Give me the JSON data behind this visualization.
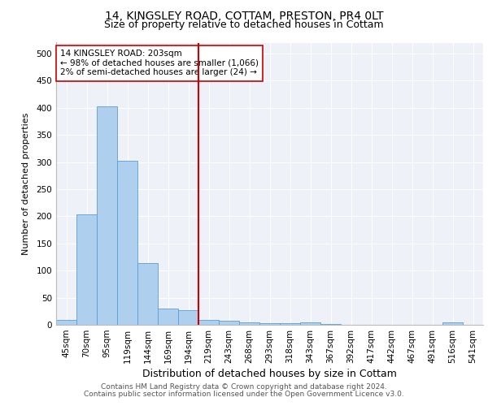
{
  "title1": "14, KINGSLEY ROAD, COTTAM, PRESTON, PR4 0LT",
  "title2": "Size of property relative to detached houses in Cottam",
  "xlabel": "Distribution of detached houses by size in Cottam",
  "ylabel": "Number of detached properties",
  "bar_labels": [
    "45sqm",
    "70sqm",
    "95sqm",
    "119sqm",
    "144sqm",
    "169sqm",
    "194sqm",
    "219sqm",
    "243sqm",
    "268sqm",
    "293sqm",
    "318sqm",
    "343sqm",
    "367sqm",
    "392sqm",
    "417sqm",
    "442sqm",
    "467sqm",
    "491sqm",
    "516sqm",
    "541sqm"
  ],
  "bar_heights": [
    9,
    204,
    403,
    303,
    113,
    30,
    27,
    9,
    7,
    4,
    3,
    3,
    4,
    2,
    0,
    0,
    0,
    0,
    0,
    4,
    0
  ],
  "bar_color": "#aed0ee",
  "bar_edge_color": "#5a9fd4",
  "vline_x": 6.5,
  "vline_color": "#cc0000",
  "annotation_line1": "14 KINGSLEY ROAD: 203sqm",
  "annotation_line2": "← 98% of detached houses are smaller (1,066)",
  "annotation_line3": "2% of semi-detached houses are larger (24) →",
  "annotation_box_color": "#ffffff",
  "annotation_box_edge": "#cc0000",
  "ylim": [
    0,
    520
  ],
  "yticks": [
    0,
    50,
    100,
    150,
    200,
    250,
    300,
    350,
    400,
    450,
    500
  ],
  "footer1": "Contains HM Land Registry data © Crown copyright and database right 2024.",
  "footer2": "Contains public sector information licensed under the Open Government Licence v3.0.",
  "bg_color": "#eef2f8",
  "fig_bg_color": "#ffffff",
  "title1_fontsize": 10,
  "title2_fontsize": 9,
  "xlabel_fontsize": 9,
  "ylabel_fontsize": 8,
  "tick_fontsize": 7.5,
  "footer_fontsize": 6.5
}
